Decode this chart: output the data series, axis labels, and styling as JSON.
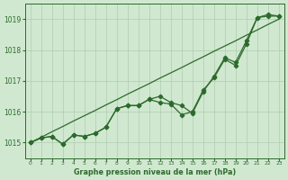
{
  "title": "Graphe pression niveau de la mer (hPa)",
  "hours": [
    0,
    1,
    2,
    3,
    4,
    5,
    6,
    7,
    8,
    9,
    10,
    11,
    12,
    13,
    14,
    15,
    16,
    17,
    18,
    19,
    20,
    21,
    22,
    23
  ],
  "line_measured1": [
    1015.0,
    1015.15,
    1015.2,
    1014.95,
    1015.25,
    1015.2,
    1015.3,
    1015.5,
    1016.1,
    1016.2,
    1016.2,
    1016.4,
    1016.3,
    1016.25,
    1015.9,
    1016.0,
    1016.7,
    1017.1,
    1017.7,
    1017.5,
    1018.2,
    1019.05,
    1019.1,
    1019.1
  ],
  "line_measured2": [
    1015.0,
    1015.15,
    1015.2,
    1014.95,
    1015.25,
    1015.2,
    1015.3,
    1015.5,
    1016.1,
    1016.2,
    1016.2,
    1016.4,
    1016.5,
    1016.3,
    1016.2,
    1015.95,
    1016.65,
    1017.15,
    1017.75,
    1017.6,
    1018.3,
    1019.05,
    1019.15,
    1019.1
  ],
  "line_trend": [
    1015.0,
    1015.17,
    1015.35,
    1015.52,
    1015.7,
    1015.87,
    1016.04,
    1016.22,
    1016.39,
    1016.57,
    1016.74,
    1016.91,
    1017.09,
    1017.26,
    1017.43,
    1017.61,
    1017.78,
    1017.96,
    1018.13,
    1018.3,
    1018.48,
    1018.65,
    1018.83,
    1019.0
  ],
  "bg_color": "#d0e8d0",
  "line_color": "#2d6a2d",
  "grid_color": "#b0ccb0",
  "text_color": "#2d6a2d",
  "ylim": [
    1014.5,
    1019.5
  ],
  "yticks": [
    1015,
    1016,
    1017,
    1018,
    1019
  ],
  "xlim": [
    -0.5,
    23.5
  ]
}
